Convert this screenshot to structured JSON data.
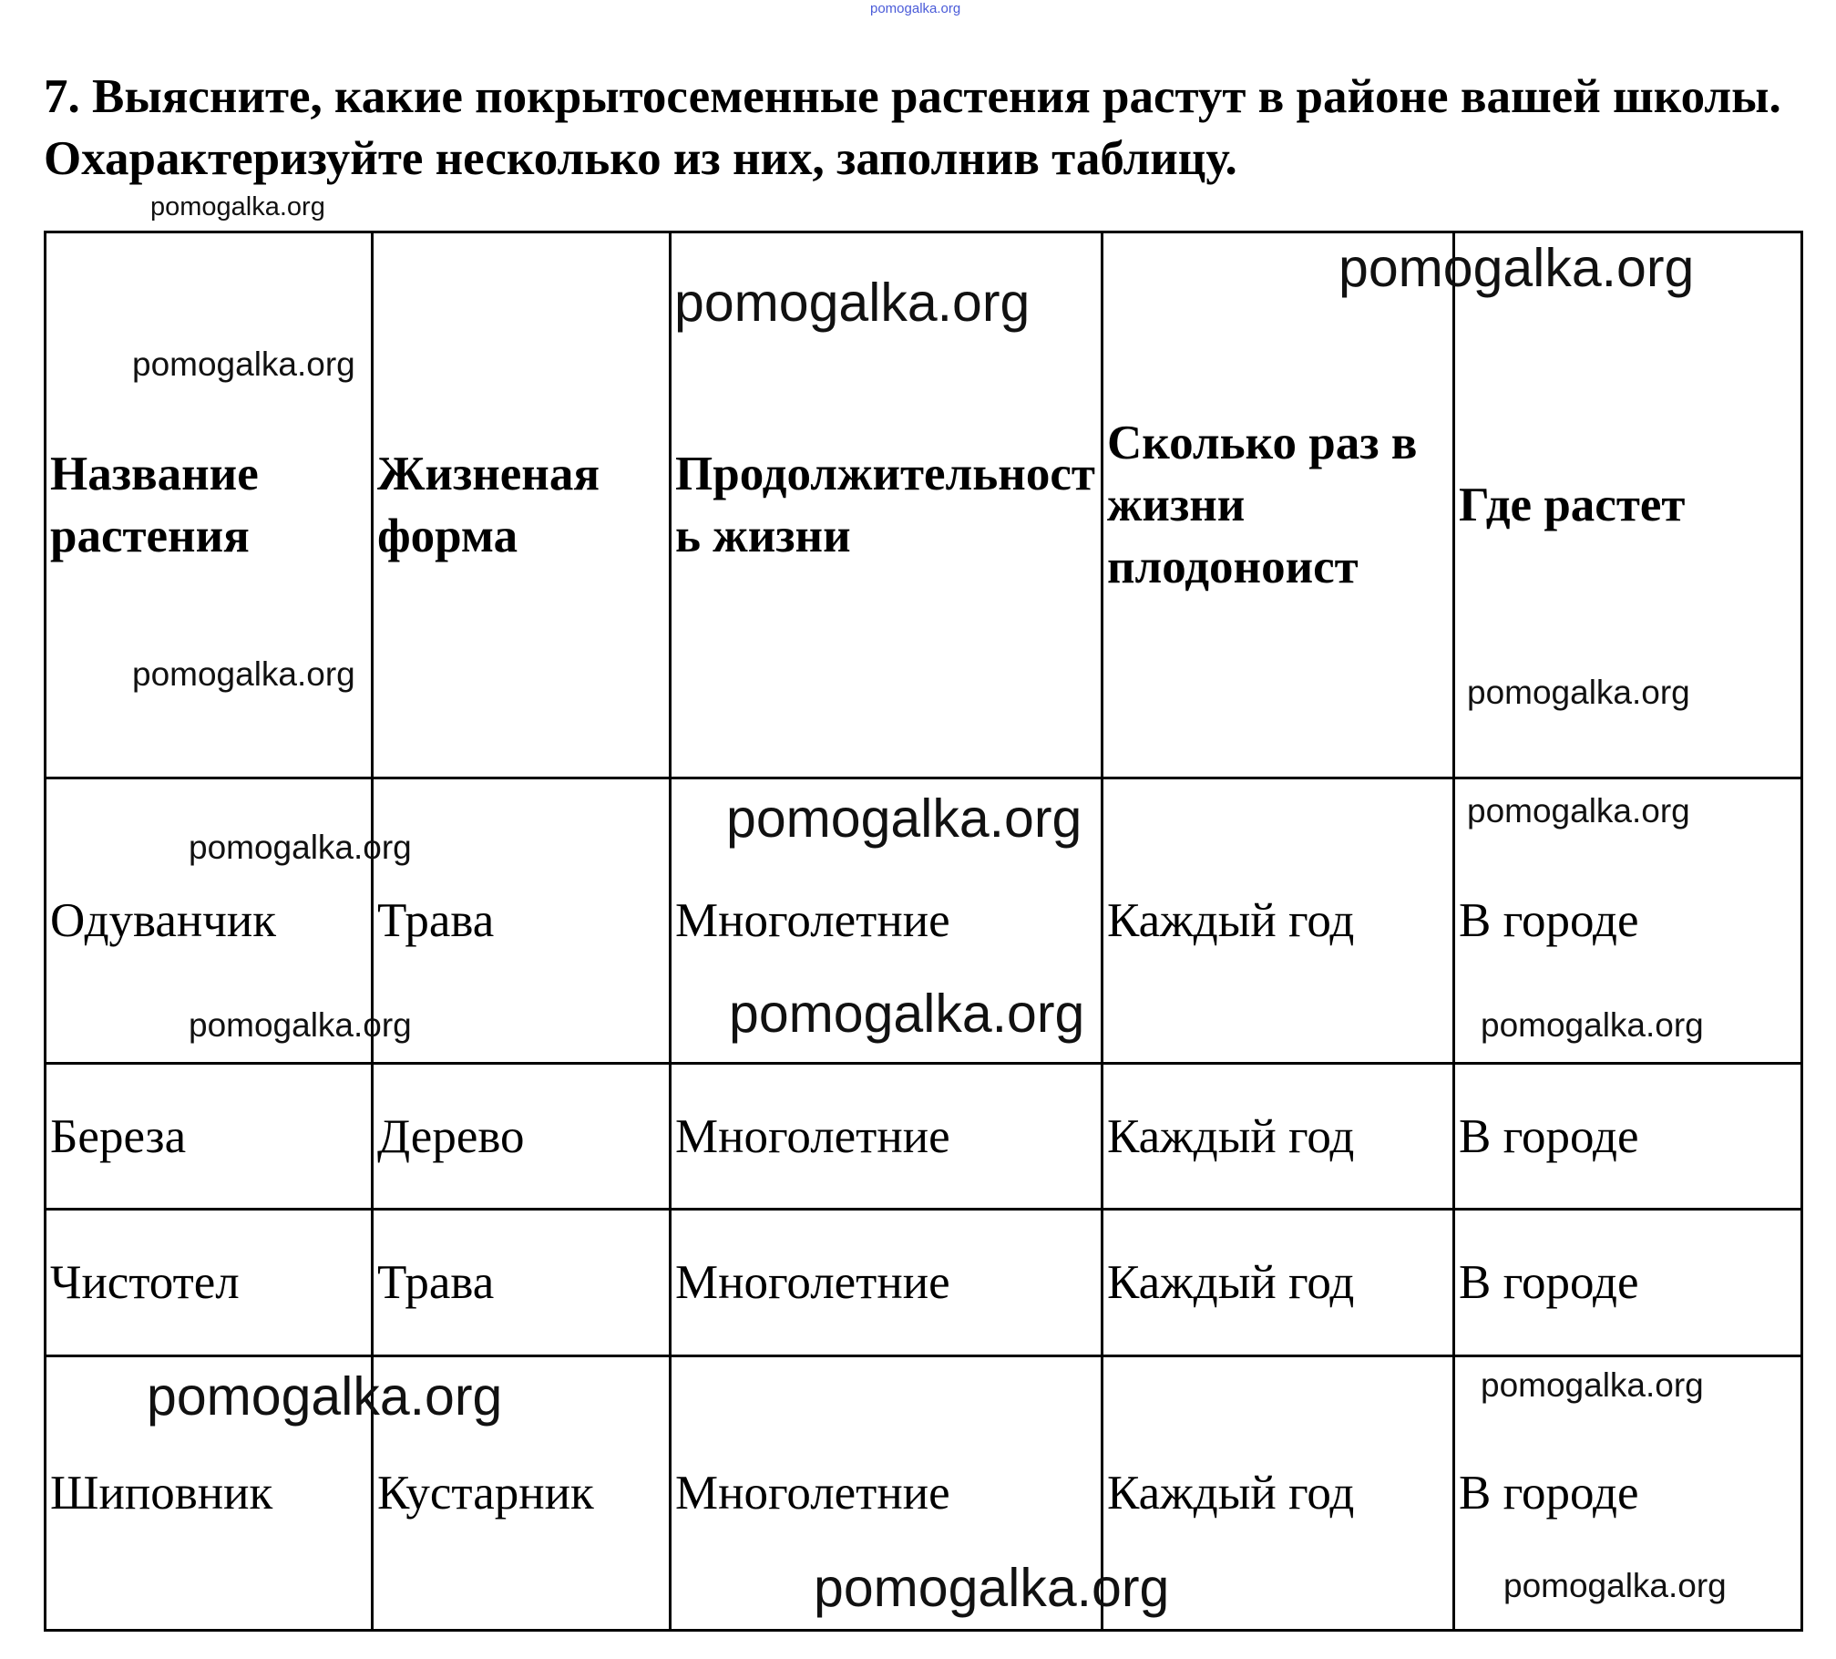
{
  "title": "7. Выясните, какие покрытосеменные растения растут в районе вашей школы. Охарактеризуйте несколько из них, заполнив таблицу.",
  "table": {
    "headers": [
      "Название растения",
      "Жизненая форма",
      "Продолжительность жизни",
      "Сколько раз в жизни плодоноист",
      "Где растет"
    ],
    "rows": [
      [
        "Одуванчик",
        "Трава",
        "Многолетние",
        "Каждый год",
        "В городе"
      ],
      [
        "Береза",
        "Дерево",
        "Многолетние",
        "Каждый год",
        "В городе"
      ],
      [
        "Чистотел",
        "Трава",
        "Многолетние",
        "Каждый год",
        "В городе"
      ],
      [
        "Шиповник",
        "Кустарник",
        "Многолетние",
        "Каждый год",
        "В городе"
      ]
    ]
  },
  "watermark": "pomogalka.org",
  "watermark_top_color": "#4a5bd8"
}
